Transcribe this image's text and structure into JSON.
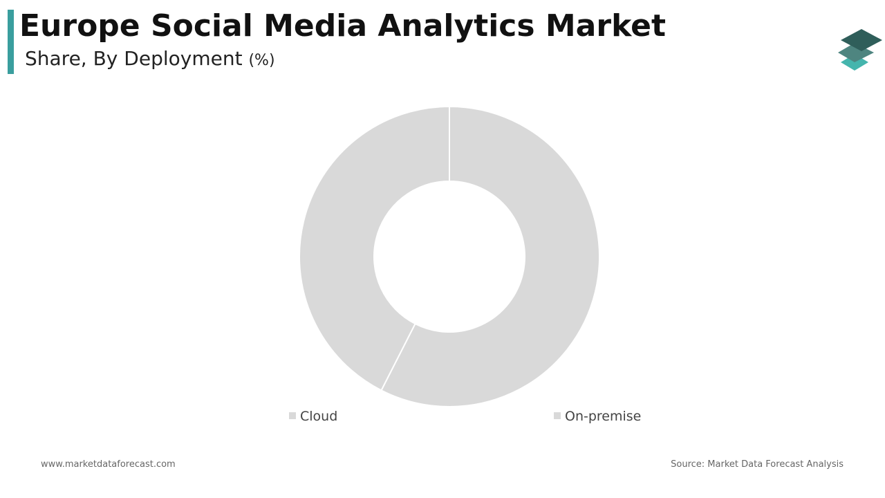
{
  "chart_data": {
    "type": "donut",
    "title": "Europe Social Media Analytics Market",
    "subtitle": "Share, By Deployment",
    "subtitle_unit": "(%)",
    "categories": [
      "Cloud",
      "On-premise"
    ],
    "values": [
      57.5,
      42.5
    ],
    "colors": [
      "#d9d9d9",
      "#d9d9d9"
    ]
  },
  "footer": {
    "website": "www.marketdataforecast.com",
    "source": "Source: Market Data Forecast Analysis"
  }
}
